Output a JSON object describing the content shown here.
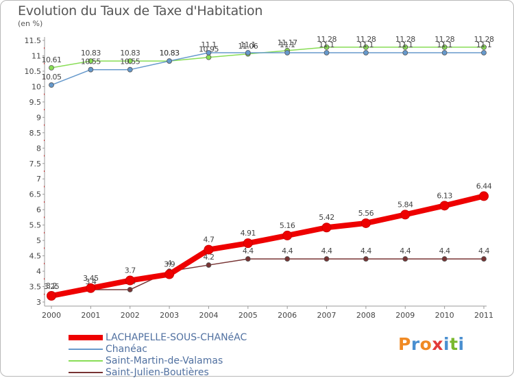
{
  "header": {
    "title": "Evolution du Taux de Taxe d'Habitation",
    "unit": "(en %)"
  },
  "logo": {
    "text": "Proxiti",
    "colors": [
      "#f08a24",
      "#4a8fd0",
      "#f08a24",
      "#e23a3a",
      "#4a8fd0",
      "#7ab82e",
      "#4a8fd0"
    ]
  },
  "chart_data": {
    "type": "line",
    "x": [
      "2000",
      "2001",
      "2002",
      "2003",
      "2004",
      "2005",
      "2006",
      "2007",
      "2008",
      "2009",
      "2010",
      "2011"
    ],
    "ylim": [
      3,
      11.5
    ],
    "yticks": [
      "3",
      "3.5",
      "4",
      "4.5",
      "5",
      "5.5",
      "6",
      "6.5",
      "7",
      "7.5",
      "8",
      "8.5",
      "9",
      "9.5",
      "10",
      "10.5",
      "11",
      "11.5"
    ],
    "grid": false,
    "legend_position": "bottom-left",
    "series": [
      {
        "name": "LACHAPELLE-SOUS-CHANéAC",
        "color": "#ee0000",
        "style": "thick",
        "values": [
          3.2,
          3.45,
          3.7,
          3.9,
          4.7,
          4.91,
          5.16,
          5.42,
          5.56,
          5.84,
          6.13,
          6.44
        ],
        "labels": [
          "3.2",
          "3.45",
          "3.7",
          "3.9",
          "4.7",
          "4.91",
          "5.16",
          "5.42",
          "5.56",
          "5.84",
          "6.13",
          "6.44"
        ]
      },
      {
        "name": "Chanéac",
        "color": "#6699cc",
        "style": "thin",
        "values": [
          10.05,
          10.55,
          10.55,
          10.83,
          11.1,
          11.1,
          11.1,
          11.1,
          11.1,
          11.1,
          11.1,
          11.1
        ],
        "labels": [
          "10.05",
          "10.55",
          "10.55",
          "10.83",
          "11.1",
          "11.1",
          "11.1",
          "11.1",
          "11.1",
          "11.1",
          "11.1",
          "11.1"
        ]
      },
      {
        "name": "Saint-Martin-de-Valamas",
        "color": "#88dd55",
        "style": "thin",
        "values": [
          10.61,
          10.83,
          10.83,
          10.83,
          10.95,
          11.06,
          11.17,
          11.28,
          11.28,
          11.28,
          11.28,
          11.28
        ],
        "labels": [
          "10.61",
          "10.83",
          "10.83",
          "10.83",
          "10.95",
          "11.06",
          "11.17",
          "11.28",
          "11.28",
          "11.28",
          "11.28",
          "11.28"
        ]
      },
      {
        "name": "Saint-Julien-Boutières",
        "color": "#773333",
        "style": "thin",
        "values": [
          3.25,
          3.4,
          3.4,
          4.0,
          4.2,
          4.4,
          4.4,
          4.4,
          4.4,
          4.4,
          4.4,
          4.4
        ],
        "labels": [
          "3.25",
          "3.4",
          "3.4",
          "4",
          "4.2",
          "4.4",
          "4.4",
          "4.4",
          "4.4",
          "4.4",
          "4.4",
          "4.4"
        ]
      }
    ]
  }
}
